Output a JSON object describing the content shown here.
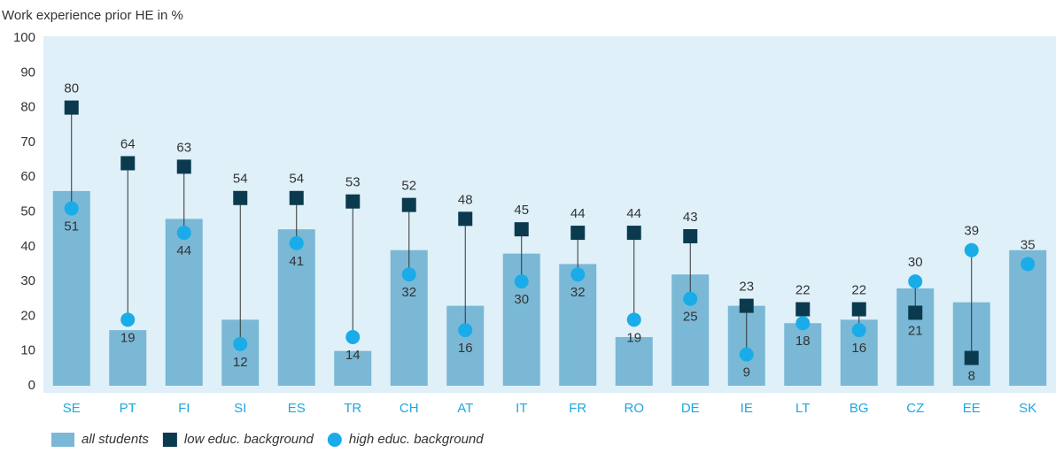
{
  "chart_data": {
    "type": "bar",
    "title": "Work experience prior HE in %",
    "categories": [
      "SE",
      "PT",
      "FI",
      "SI",
      "ES",
      "TR",
      "CH",
      "AT",
      "IT",
      "FR",
      "RO",
      "DE",
      "IE",
      "LT",
      "BG",
      "CZ",
      "EE",
      "SK"
    ],
    "series": [
      {
        "name": "all students",
        "color": "#7ab8d6",
        "marker": "bar",
        "values": [
          56,
          16,
          48,
          19,
          45,
          10,
          39,
          23,
          38,
          35,
          14,
          32,
          23,
          18,
          19,
          28,
          24,
          39
        ]
      },
      {
        "name": "low educ. background",
        "color": "#0b3a4f",
        "marker": "square",
        "values": [
          80,
          64,
          63,
          54,
          54,
          53,
          52,
          48,
          45,
          44,
          44,
          43,
          23,
          22,
          22,
          21,
          8,
          null
        ]
      },
      {
        "name": "high educ. background",
        "color": "#1aace8",
        "marker": "circle",
        "values": [
          51,
          19,
          44,
          12,
          41,
          14,
          32,
          16,
          30,
          32,
          19,
          25,
          9,
          18,
          16,
          30,
          39,
          35
        ]
      }
    ],
    "ylim": [
      0,
      100
    ],
    "yticks": [
      0,
      10,
      20,
      30,
      40,
      50,
      60,
      70,
      80,
      90,
      100
    ],
    "grid": false
  }
}
